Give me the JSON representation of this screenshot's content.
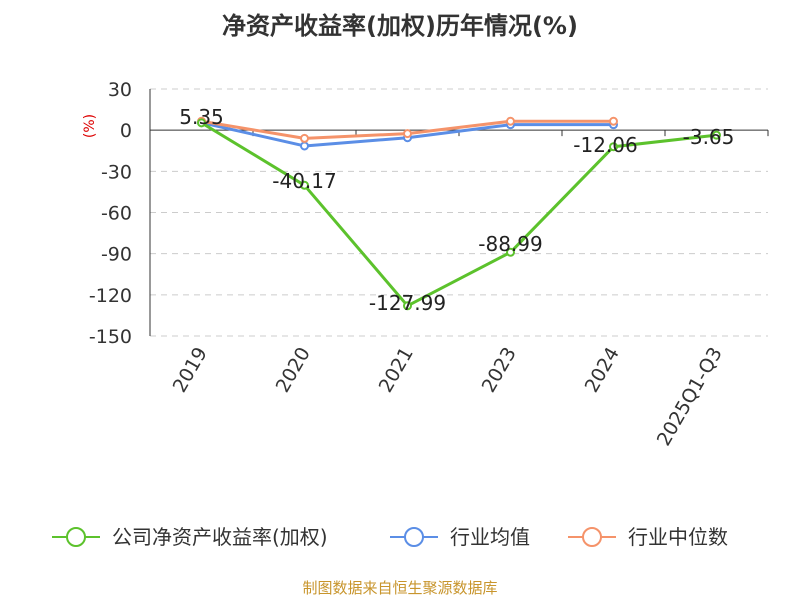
{
  "title": "净资产收益率(加权)历年情况(%)",
  "source": "制图数据来自恒生聚源数据库",
  "colors": {
    "company": "#5cc22c",
    "industry_avg": "#5b8ee6",
    "industry_median": "#f5936a",
    "grid": "#cccccc",
    "axis": "#333333"
  },
  "chart_data": {
    "type": "line",
    "title": "净资产收益率(加权)历年情况(%)",
    "ylabel": "(%)",
    "xlabel": "",
    "categories": [
      "2019",
      "2020",
      "2021",
      "2023",
      "2024",
      "2025Q1-Q3"
    ],
    "ylim": [
      -150,
      30
    ],
    "yticks": [
      30,
      0,
      -30,
      -60,
      -90,
      -120,
      -150
    ],
    "grid": true,
    "legend": "bottom",
    "series": [
      {
        "name": "公司净资产收益率(加权)",
        "values": [
          5.35,
          -40.17,
          -127.99,
          -88.99,
          -12.06,
          -3.65
        ],
        "labels": [
          "5.35",
          "-40.17",
          "-127.99",
          "-88.99",
          "-12.06",
          "-3.65"
        ]
      },
      {
        "name": "行业均值",
        "values": [
          5.5,
          -11.5,
          -5.5,
          4.0,
          4.0,
          null
        ]
      },
      {
        "name": "行业中位数",
        "values": [
          6.5,
          -6.0,
          -2.5,
          6.5,
          6.5,
          null
        ]
      }
    ]
  }
}
